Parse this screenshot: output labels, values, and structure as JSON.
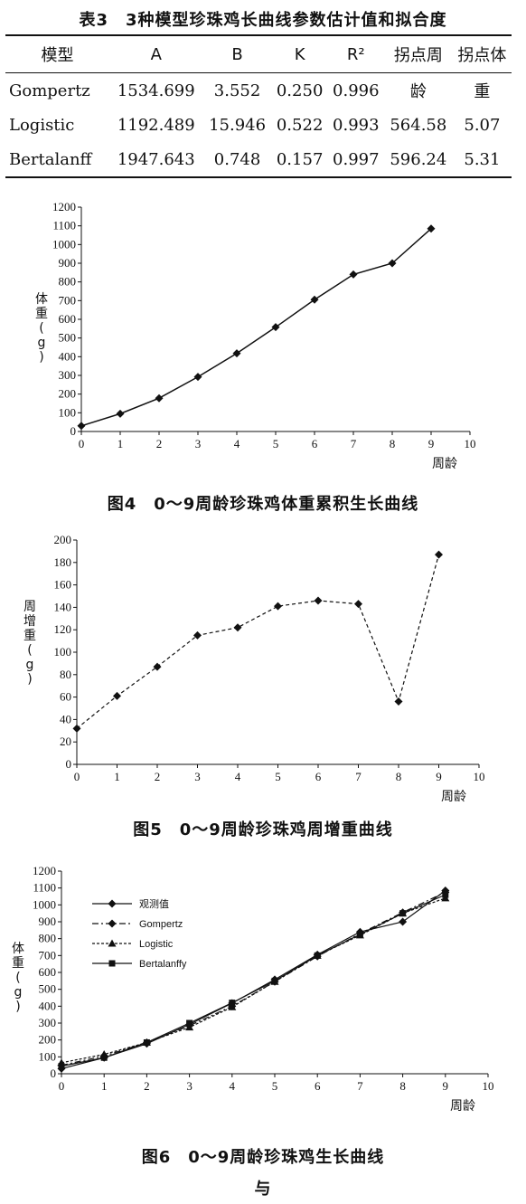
{
  "table3": {
    "caption": "表3　3种模型珍珠鸡长曲线参数估计值和拟合度",
    "headers": [
      "模型",
      "A",
      "B",
      "K",
      "R²",
      "拐点周",
      "拐点体"
    ],
    "rows": [
      [
        "Gompertz",
        "1534.699",
        "3.552",
        "0.250",
        "0.996",
        "龄",
        "重"
      ],
      [
        "Logistic",
        "1192.489",
        "15.946",
        "0.522",
        "0.993",
        "564.58",
        "5.07"
      ],
      [
        "Bertalanff",
        "1947.643",
        "0.748",
        "0.157",
        "0.997",
        "596.24",
        "5.31"
      ]
    ]
  },
  "fig4_caption": "图4　0～9周龄珍珠鸡体重累积生长曲线",
  "fig5_caption": "图5　0～9周龄珍珠鸡周增重曲线",
  "fig6_caption": "图6　0～9周龄珍珠鸡生长曲线",
  "trailing_text": "与",
  "chart_data": [
    {
      "type": "line",
      "title": "",
      "xlabel": "周龄",
      "ylabel": "体重(g)",
      "x": [
        0,
        1,
        2,
        3,
        4,
        5,
        6,
        7,
        8,
        9
      ],
      "series": [
        {
          "values": [
            30,
            95,
            178,
            292,
            418,
            558,
            705,
            840,
            900,
            1085
          ]
        }
      ],
      "xlim": [
        0,
        10
      ],
      "ylim": [
        0,
        1200
      ],
      "xticks": [
        "0",
        "1",
        "2",
        "3",
        "4",
        "5",
        "6",
        "7",
        "8",
        "9",
        "10"
      ],
      "yticks": [
        "0",
        "100",
        "200",
        "300",
        "400",
        "500",
        "600",
        "700",
        "800",
        "900",
        "1000",
        "1100",
        "1200"
      ],
      "grid": false
    },
    {
      "type": "line",
      "title": "",
      "xlabel": "周龄",
      "ylabel": "周增重(g)",
      "x": [
        0,
        1,
        2,
        3,
        4,
        5,
        6,
        7,
        8,
        9
      ],
      "series": [
        {
          "values": [
            32,
            61,
            87,
            115,
            122,
            141,
            146,
            143,
            56,
            187
          ]
        }
      ],
      "xlim": [
        0,
        10
      ],
      "ylim": [
        0,
        200
      ],
      "xticks": [
        "0",
        "1",
        "2",
        "3",
        "4",
        "5",
        "6",
        "7",
        "8",
        "9",
        "10"
      ],
      "yticks": [
        "0",
        "20",
        "40",
        "60",
        "80",
        "100",
        "120",
        "140",
        "160",
        "180",
        "200"
      ],
      "grid": false
    },
    {
      "type": "line",
      "title": "",
      "xlabel": "周龄",
      "ylabel": "体重(g)",
      "x": [
        0,
        1,
        2,
        3,
        4,
        5,
        6,
        7,
        8,
        9
      ],
      "series": [
        {
          "name": "观测值",
          "values": [
            30,
            95,
            178,
            292,
            418,
            558,
            705,
            840,
            900,
            1085
          ]
        },
        {
          "name": "Gompertz",
          "values": [
            50,
            105,
            185,
            285,
            400,
            545,
            695,
            830,
            955,
            1075
          ]
        },
        {
          "name": "Logistic",
          "values": [
            65,
            115,
            185,
            275,
            395,
            545,
            700,
            820,
            950,
            1040
          ]
        },
        {
          "name": "Bertalanffy",
          "values": [
            45,
            95,
            185,
            300,
            420,
            550,
            700,
            825,
            950,
            1060
          ]
        }
      ],
      "xlim": [
        0,
        10
      ],
      "ylim": [
        0,
        1200
      ],
      "xticks": [
        "0",
        "1",
        "2",
        "3",
        "4",
        "5",
        "6",
        "7",
        "8",
        "9",
        "10"
      ],
      "yticks": [
        "0",
        "100",
        "200",
        "300",
        "400",
        "500",
        "600",
        "700",
        "800",
        "900",
        "1000",
        "1100",
        "1200"
      ],
      "legend": "top-left",
      "grid": false
    }
  ]
}
